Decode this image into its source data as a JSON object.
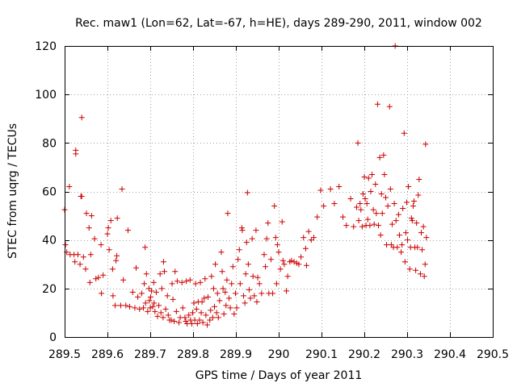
{
  "chart_data": {
    "type": "scatter",
    "title": "Rec. maw1 (Lon=62, Lat=-67, h=HE), days 289-290, 2011, window 002",
    "xlabel": "GPS time / Days of year 2011",
    "ylabel": "STEC from uqrg / TECUs",
    "xlim": [
      289.5,
      290.5
    ],
    "ylim": [
      0,
      120
    ],
    "xticks": [
      289.5,
      289.6,
      289.7,
      289.8,
      289.9,
      290,
      290.1,
      290.2,
      290.3,
      290.4,
      290.5
    ],
    "xtick_labels": [
      "289.5",
      "289.6",
      "289.7",
      "289.8",
      "289.9",
      "290",
      "290.1",
      "290.2",
      "290.3",
      "290.4",
      "290.5"
    ],
    "yticks": [
      0,
      20,
      40,
      60,
      80,
      100,
      120
    ],
    "ytick_labels": [
      "0",
      "20",
      "40",
      "60",
      "80",
      "100",
      "120"
    ],
    "grid": true,
    "marker": "+",
    "color": "#cc0000",
    "series": [
      {
        "name": "STEC",
        "points": [
          [
            289.5,
            52.5
          ],
          [
            289.502,
            38
          ],
          [
            289.505,
            35
          ],
          [
            289.511,
            62
          ],
          [
            289.513,
            34
          ],
          [
            289.522,
            34
          ],
          [
            289.524,
            31
          ],
          [
            289.526,
            77
          ],
          [
            289.526,
            75.5
          ],
          [
            289.531,
            34
          ],
          [
            289.536,
            30
          ],
          [
            289.538,
            58
          ],
          [
            289.54,
            58
          ],
          [
            289.54,
            90.5
          ],
          [
            289.544,
            33
          ],
          [
            289.549,
            28
          ],
          [
            289.551,
            51
          ],
          [
            289.557,
            45
          ],
          [
            289.559,
            22.5
          ],
          [
            289.561,
            34
          ],
          [
            289.563,
            50
          ],
          [
            289.57,
            40.5
          ],
          [
            289.573,
            24
          ],
          [
            289.579,
            24.5
          ],
          [
            289.585,
            38
          ],
          [
            289.586,
            18
          ],
          [
            289.59,
            25.5
          ],
          [
            289.6,
            42.5
          ],
          [
            289.602,
            45
          ],
          [
            289.604,
            36
          ],
          [
            289.608,
            48
          ],
          [
            289.612,
            28
          ],
          [
            289.613,
            17
          ],
          [
            289.618,
            13
          ],
          [
            289.62,
            31.5
          ],
          [
            289.622,
            33.5
          ],
          [
            289.623,
            49
          ],
          [
            289.631,
            13
          ],
          [
            289.634,
            61
          ],
          [
            289.637,
            23.5
          ],
          [
            289.643,
            13
          ],
          [
            289.648,
            44
          ],
          [
            289.652,
            12.5
          ],
          [
            289.659,
            18.5
          ],
          [
            289.664,
            12
          ],
          [
            289.667,
            28.5
          ],
          [
            289.671,
            16.5
          ],
          [
            289.675,
            11.5
          ],
          [
            289.68,
            18
          ],
          [
            289.684,
            12
          ],
          [
            289.686,
            22
          ],
          [
            289.688,
            37
          ],
          [
            289.689,
            14
          ],
          [
            289.691,
            26
          ],
          [
            289.694,
            10.5
          ],
          [
            289.697,
            20
          ],
          [
            289.698,
            15
          ],
          [
            289.7,
            12
          ],
          [
            289.701,
            16.5
          ],
          [
            289.703,
            19
          ],
          [
            289.706,
            12.5
          ],
          [
            289.708,
            22.5
          ],
          [
            289.709,
            14
          ],
          [
            289.711,
            10.5
          ],
          [
            289.714,
            18.5
          ],
          [
            289.717,
            8.5
          ],
          [
            289.72,
            13
          ],
          [
            289.723,
            26
          ],
          [
            289.725,
            10
          ],
          [
            289.727,
            20
          ],
          [
            289.73,
            8
          ],
          [
            289.731,
            31
          ],
          [
            289.733,
            27
          ],
          [
            289.736,
            11.5
          ],
          [
            289.74,
            17
          ],
          [
            289.742,
            9
          ],
          [
            289.745,
            7
          ],
          [
            289.749,
            7
          ],
          [
            289.751,
            22
          ],
          [
            289.753,
            15.5
          ],
          [
            289.756,
            6.5
          ],
          [
            289.758,
            27
          ],
          [
            289.761,
            10.5
          ],
          [
            289.763,
            23
          ],
          [
            289.767,
            6
          ],
          [
            289.77,
            8
          ],
          [
            289.774,
            22.5
          ],
          [
            289.776,
            12
          ],
          [
            289.781,
            8
          ],
          [
            289.783,
            6.5
          ],
          [
            289.784,
            23
          ],
          [
            289.786,
            5.5
          ],
          [
            289.79,
            9
          ],
          [
            289.793,
            23.5
          ],
          [
            289.794,
            7
          ],
          [
            289.797,
            5.5
          ],
          [
            289.799,
            10
          ],
          [
            289.802,
            14
          ],
          [
            289.804,
            7
          ],
          [
            289.806,
            22
          ],
          [
            289.808,
            11.5
          ],
          [
            289.81,
            5.5
          ],
          [
            289.812,
            14.5
          ],
          [
            289.815,
            7
          ],
          [
            289.817,
            22.5
          ],
          [
            289.819,
            10
          ],
          [
            289.821,
            14.5
          ],
          [
            289.823,
            6
          ],
          [
            289.826,
            16
          ],
          [
            289.828,
            24
          ],
          [
            289.83,
            9
          ],
          [
            289.833,
            5
          ],
          [
            289.835,
            16.5
          ],
          [
            289.839,
            7
          ],
          [
            289.841,
            11
          ],
          [
            289.843,
            25
          ],
          [
            289.846,
            8
          ],
          [
            289.848,
            20
          ],
          [
            289.85,
            12.5
          ],
          [
            289.852,
            30
          ],
          [
            289.855,
            10
          ],
          [
            289.857,
            18
          ],
          [
            289.859,
            8
          ],
          [
            289.862,
            15
          ],
          [
            289.866,
            35
          ],
          [
            289.868,
            27
          ],
          [
            289.87,
            20
          ],
          [
            289.872,
            9.5
          ],
          [
            289.875,
            18.5
          ],
          [
            289.877,
            13
          ],
          [
            289.879,
            23.5
          ],
          [
            289.881,
            51
          ],
          [
            289.884,
            16
          ],
          [
            289.887,
            12
          ],
          [
            289.89,
            22
          ],
          [
            289.893,
            29
          ],
          [
            289.896,
            9.5
          ],
          [
            289.899,
            18
          ],
          [
            289.902,
            12
          ],
          [
            289.905,
            32
          ],
          [
            289.908,
            36
          ],
          [
            289.91,
            22
          ],
          [
            289.914,
            45
          ],
          [
            289.915,
            44
          ],
          [
            289.918,
            17
          ],
          [
            289.921,
            14
          ],
          [
            289.923,
            26
          ],
          [
            289.925,
            39
          ],
          [
            289.927,
            59.5
          ],
          [
            289.929,
            30
          ],
          [
            289.931,
            19.5
          ],
          [
            289.934,
            16
          ],
          [
            289.938,
            40.5
          ],
          [
            289.94,
            25
          ],
          [
            289.943,
            17
          ],
          [
            289.947,
            44
          ],
          [
            289.949,
            14.5
          ],
          [
            289.951,
            24.5
          ],
          [
            289.955,
            22
          ],
          [
            289.96,
            18
          ],
          [
            289.966,
            34
          ],
          [
            289.969,
            29
          ],
          [
            289.972,
            40.5
          ],
          [
            289.975,
            47
          ],
          [
            289.977,
            18
          ],
          [
            289.982,
            32
          ],
          [
            289.986,
            18
          ],
          [
            289.99,
            54
          ],
          [
            289.993,
            41
          ],
          [
            289.995,
            22
          ],
          [
            289.997,
            38
          ],
          [
            290.0,
            35
          ],
          [
            290.004,
            28
          ],
          [
            290.008,
            47.5
          ],
          [
            290.01,
            31.5
          ],
          [
            290.013,
            30
          ],
          [
            290.018,
            19
          ],
          [
            290.021,
            25
          ],
          [
            290.026,
            31
          ],
          [
            290.03,
            31.5
          ],
          [
            290.036,
            31
          ],
          [
            290.042,
            30.5
          ],
          [
            290.047,
            30
          ],
          [
            290.052,
            33
          ],
          [
            290.058,
            41
          ],
          [
            290.063,
            36.5
          ],
          [
            290.065,
            29.5
          ],
          [
            290.07,
            43.5
          ],
          [
            290.076,
            40
          ],
          [
            290.082,
            41
          ],
          [
            290.09,
            49.5
          ],
          [
            290.098,
            60.5
          ],
          [
            290.105,
            54
          ],
          [
            290.121,
            61
          ],
          [
            290.13,
            55
          ],
          [
            290.141,
            62
          ],
          [
            290.15,
            49.5
          ],
          [
            290.158,
            46
          ],
          [
            290.168,
            57
          ],
          [
            290.175,
            45.5
          ],
          [
            290.182,
            53.5
          ],
          [
            290.185,
            80
          ],
          [
            290.187,
            48
          ],
          [
            290.19,
            55
          ],
          [
            290.192,
            52.5
          ],
          [
            290.195,
            45.5
          ],
          [
            290.197,
            59
          ],
          [
            290.2,
            66
          ],
          [
            290.202,
            57
          ],
          [
            290.204,
            46
          ],
          [
            290.206,
            55
          ],
          [
            290.208,
            48.5
          ],
          [
            290.21,
            65.5
          ],
          [
            290.213,
            46
          ],
          [
            290.215,
            60
          ],
          [
            290.218,
            67
          ],
          [
            290.221,
            52.5
          ],
          [
            290.223,
            46.5
          ],
          [
            290.226,
            63
          ],
          [
            290.228,
            51
          ],
          [
            290.231,
            96
          ],
          [
            290.233,
            46
          ],
          [
            290.236,
            74
          ],
          [
            290.238,
            42
          ],
          [
            290.24,
            59
          ],
          [
            290.242,
            51
          ],
          [
            290.245,
            75
          ],
          [
            290.247,
            67
          ],
          [
            290.25,
            57.5
          ],
          [
            290.252,
            38
          ],
          [
            290.255,
            54
          ],
          [
            290.259,
            95
          ],
          [
            290.261,
            61
          ],
          [
            290.263,
            38
          ],
          [
            290.265,
            46.5
          ],
          [
            290.268,
            37
          ],
          [
            290.27,
            55
          ],
          [
            290.272,
            120
          ],
          [
            290.274,
            48
          ],
          [
            290.277,
            37
          ],
          [
            290.28,
            50.5
          ],
          [
            290.282,
            42
          ],
          [
            290.286,
            35
          ],
          [
            290.288,
            38
          ],
          [
            290.29,
            53
          ],
          [
            290.293,
            84
          ],
          [
            290.295,
            31
          ],
          [
            290.297,
            43
          ],
          [
            290.299,
            55.5
          ],
          [
            290.301,
            40
          ],
          [
            290.303,
            62
          ],
          [
            290.306,
            28
          ],
          [
            290.308,
            37
          ],
          [
            290.31,
            49
          ],
          [
            290.312,
            48
          ],
          [
            290.314,
            54
          ],
          [
            290.316,
            56
          ],
          [
            290.318,
            37
          ],
          [
            290.32,
            27.5
          ],
          [
            290.322,
            47
          ],
          [
            290.324,
            37
          ],
          [
            290.326,
            58.5
          ],
          [
            290.328,
            65
          ],
          [
            290.331,
            26
          ],
          [
            290.333,
            43
          ],
          [
            290.335,
            36
          ],
          [
            290.338,
            45.5
          ],
          [
            290.34,
            25
          ],
          [
            290.342,
            30
          ],
          [
            290.343,
            79.5
          ],
          [
            290.345,
            41
          ]
        ]
      }
    ]
  }
}
